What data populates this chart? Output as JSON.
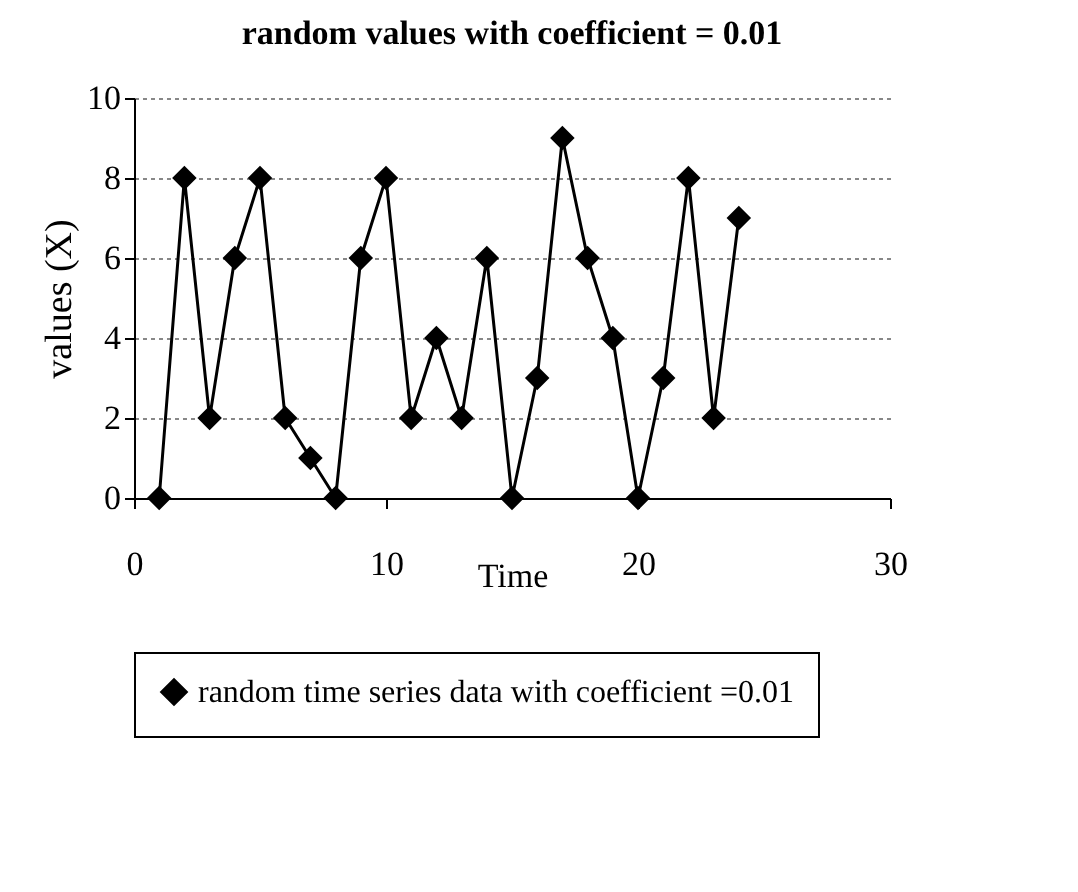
{
  "chart_data": {
    "type": "line",
    "title": "random values with coefficient = 0.01",
    "xlabel": "Time",
    "ylabel": "values (X)",
    "x": [
      1,
      2,
      3,
      4,
      5,
      6,
      7,
      8,
      9,
      10,
      11,
      12,
      13,
      14,
      15,
      16,
      17,
      18,
      19,
      20,
      21,
      22,
      23,
      24
    ],
    "series": [
      {
        "name": "random time series data with coefficient =0.01",
        "color": "#000000",
        "values": [
          0,
          8,
          2,
          6,
          8,
          2,
          1,
          0,
          6,
          8,
          2,
          4,
          2,
          6,
          0,
          3,
          9,
          6,
          4,
          0,
          3,
          8,
          2,
          7
        ]
      }
    ],
    "xlim": [
      0,
      30
    ],
    "xticks": [
      0,
      10,
      20,
      30
    ],
    "ylim": [
      0,
      10
    ],
    "yticks": [
      0,
      2,
      4,
      6,
      8,
      10
    ],
    "grid": "y",
    "legend": "bottom",
    "marker": "diamond",
    "line_style": "solid"
  }
}
